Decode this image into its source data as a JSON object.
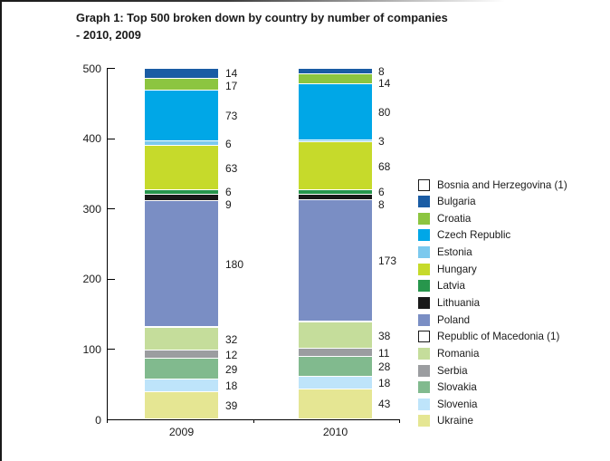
{
  "page": {
    "title_line1": "Graph 1: Top 500 broken down by country by number of companies",
    "title_line2": "- 2010, 2009"
  },
  "chart_data": {
    "type": "bar",
    "stacked": true,
    "title": "Graph 1: Top 500 broken down by country by number of companies - 2010, 2009",
    "categories": [
      "2009",
      "2010"
    ],
    "series": [
      {
        "name": "Bosnia and Herzegovina (1)",
        "color": "#FFFFFF",
        "values": [
          1,
          1
        ],
        "labeled": false
      },
      {
        "name": "Bulgaria",
        "color": "#1A5CA4",
        "values": [
          14,
          8
        ],
        "labeled": true
      },
      {
        "name": "Croatia",
        "color": "#8CC540",
        "values": [
          17,
          14
        ],
        "labeled": true
      },
      {
        "name": "Czech Republic",
        "color": "#00A7E7",
        "values": [
          73,
          80
        ],
        "labeled": true
      },
      {
        "name": "Estonia",
        "color": "#7CC9EE",
        "values": [
          6,
          3
        ],
        "labeled": true
      },
      {
        "name": "Hungary",
        "color": "#C6DA2B",
        "values": [
          63,
          68
        ],
        "labeled": true
      },
      {
        "name": "Latvia",
        "color": "#27964C",
        "values": [
          6,
          6
        ],
        "labeled": true
      },
      {
        "name": "Lithuania",
        "color": "#1A1A1A",
        "values": [
          9,
          8
        ],
        "labeled": true
      },
      {
        "name": "Poland",
        "color": "#7A8EC4",
        "values": [
          180,
          173
        ],
        "labeled": true
      },
      {
        "name": "Republic of Macedonia (1)",
        "color": "#FFFFFF",
        "values": [
          1,
          1
        ],
        "labeled": false
      },
      {
        "name": "Romania",
        "color": "#C5DD9B",
        "values": [
          32,
          38
        ],
        "labeled": true
      },
      {
        "name": "Serbia",
        "color": "#9B9DA0",
        "values": [
          12,
          11
        ],
        "labeled": true
      },
      {
        "name": "Slovakia",
        "color": "#81BA8E",
        "values": [
          29,
          28
        ],
        "labeled": true
      },
      {
        "name": "Slovenia",
        "color": "#BEE4FA",
        "values": [
          18,
          18
        ],
        "labeled": true
      },
      {
        "name": "Ukraine",
        "color": "#E5E693",
        "values": [
          39,
          43
        ],
        "labeled": true
      }
    ],
    "xlabel": "",
    "ylabel": "",
    "ylim": [
      0,
      500
    ],
    "yticks": [
      0,
      100,
      200,
      300,
      400,
      500
    ],
    "grid": false,
    "legend_position": "right",
    "axis_color": "#000000",
    "text_color": "#1a1a1a"
  }
}
